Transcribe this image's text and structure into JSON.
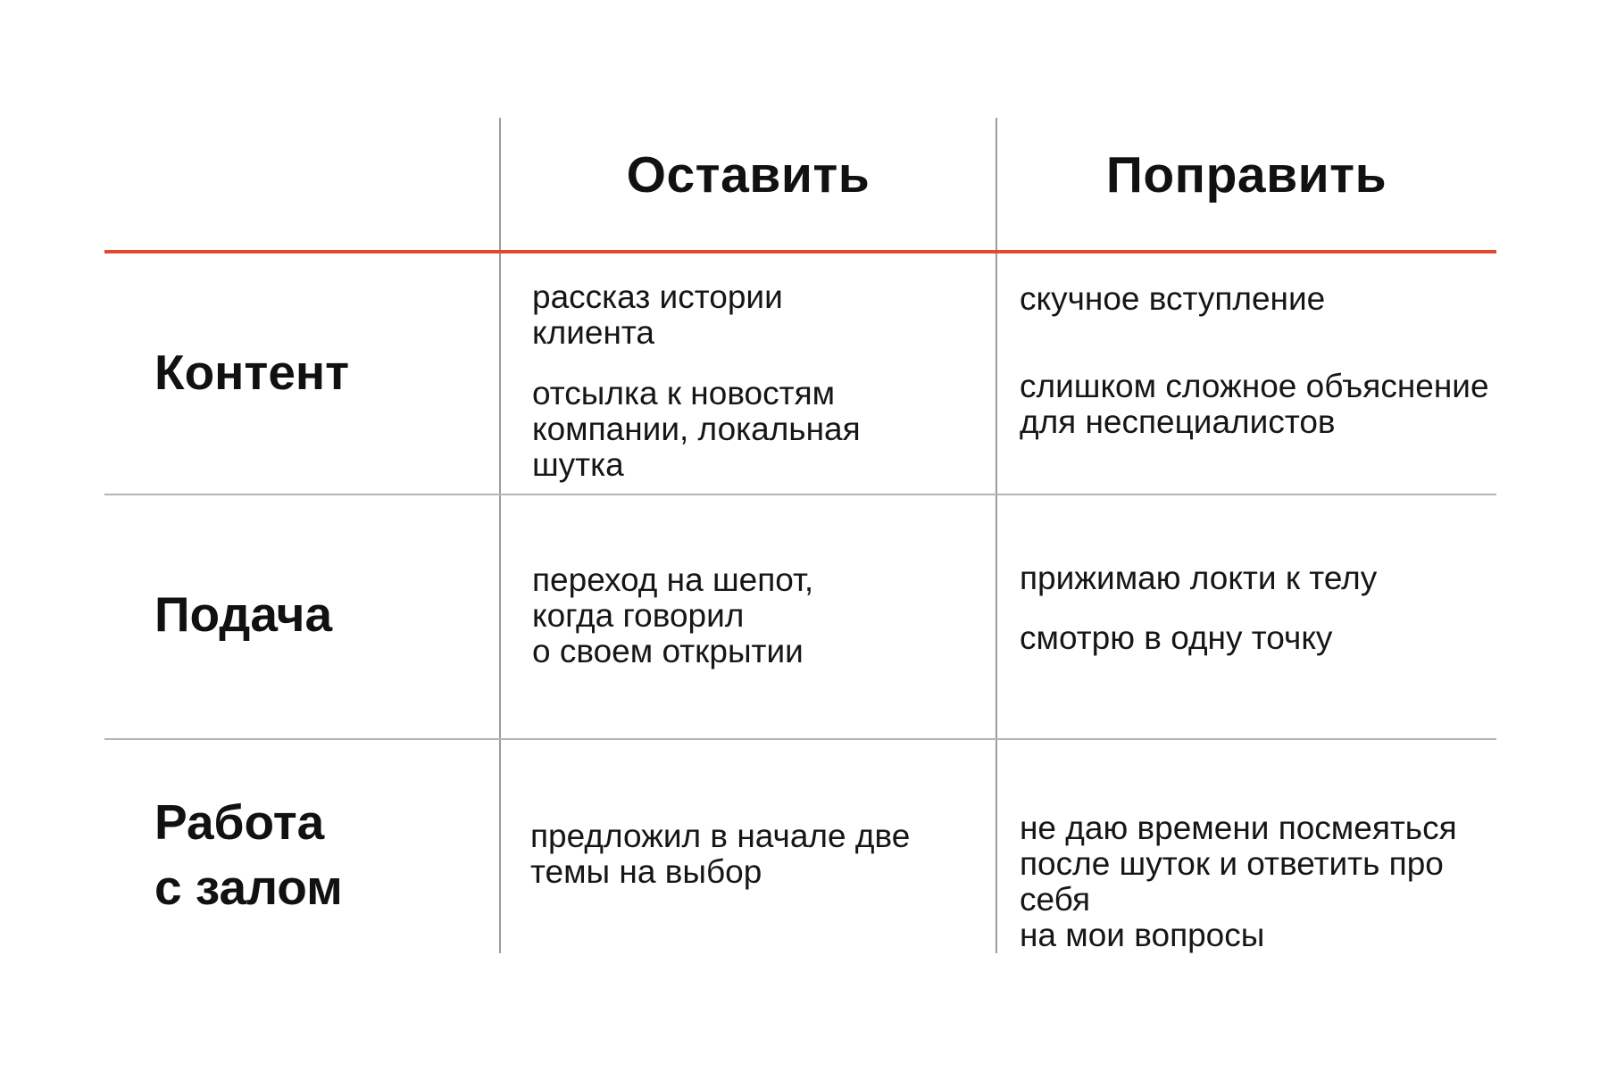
{
  "header": {
    "col_keep": "Оставить",
    "col_fix": "Поправить"
  },
  "rows": [
    {
      "label": "Контент",
      "keep": [
        "рассказ истории\nклиента",
        "отсылка к новостям\nкомпании, локальная\nшутка"
      ],
      "fix": [
        "скучное вступление",
        "слишком сложное объяснение\nдля неспециалистов"
      ]
    },
    {
      "label": "Подача",
      "keep": [
        "переход на шепот,\nкогда говорил\nо своем открытии"
      ],
      "fix": [
        "прижимаю локти к телу",
        "смотрю в одну точку"
      ]
    },
    {
      "label": "Работа\nс залом",
      "keep": [
        "предложил в начале две\nтемы на выбор"
      ],
      "fix": [
        "не даю времени посмеяться\nпосле шуток и ответить про себя\nна мои вопросы"
      ]
    }
  ],
  "colors": {
    "accent_line": "#e0492f",
    "divider_gray": "#b5b5b5",
    "column_line": "#9c9c9c",
    "text": "#161616"
  }
}
